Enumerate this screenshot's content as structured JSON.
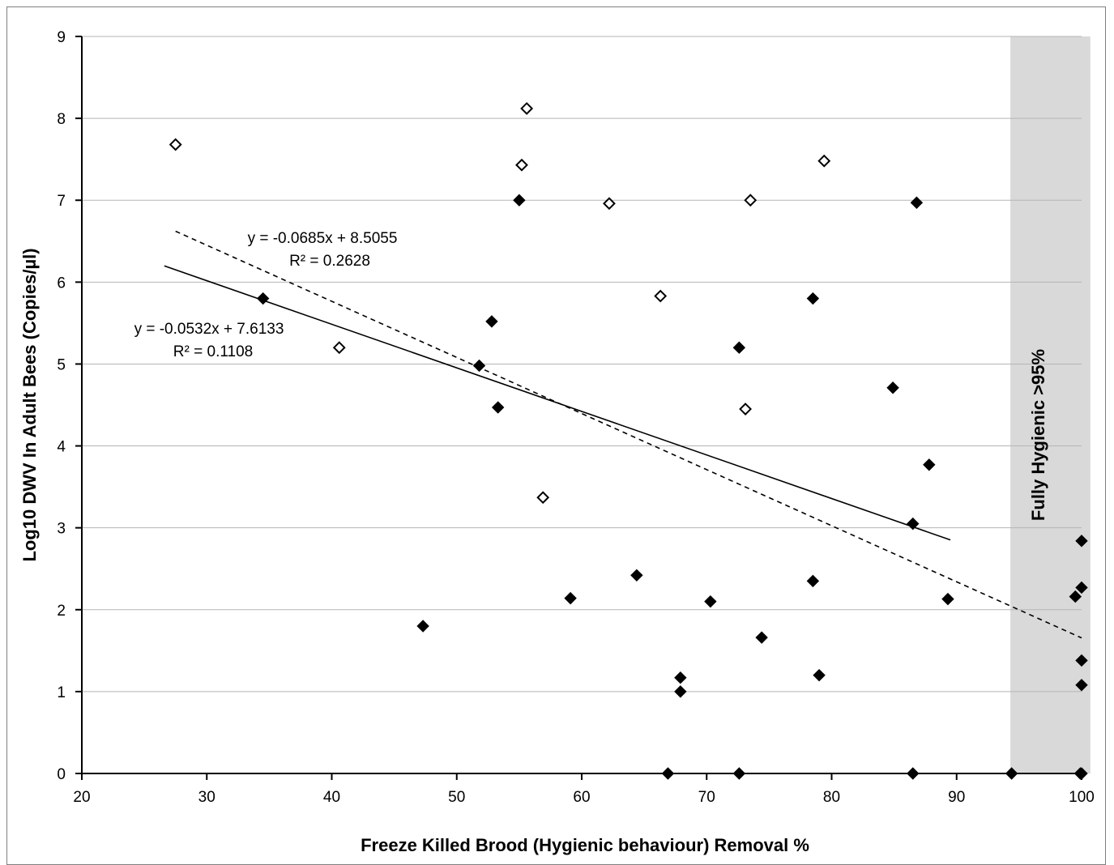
{
  "chart_data": {
    "type": "scatter",
    "xlabel": "Freeze Killed Brood (Hygienic behaviour) Removal %",
    "ylabel": "Log10 DWV In Adult Bees (Copies/µl)",
    "xlim": [
      20,
      100
    ],
    "ylim": [
      0,
      9
    ],
    "x_ticks": [
      "20",
      "30",
      "40",
      "50",
      "60",
      "70",
      "80",
      "90",
      "100"
    ],
    "y_ticks": [
      "0",
      "1",
      "2",
      "3",
      "4",
      "5",
      "6",
      "7",
      "8",
      "9"
    ],
    "grid": "horizontal",
    "shaded_region": {
      "x_range": [
        94.3,
        100.7
      ],
      "label": "Fully Hygienic >95%"
    },
    "series": [
      {
        "marker": "filled-diamond",
        "points": [
          [
            34.5,
            5.8
          ],
          [
            47.3,
            1.8
          ],
          [
            51.8,
            4.98
          ],
          [
            52.8,
            5.52
          ],
          [
            53.3,
            4.47
          ],
          [
            55.0,
            7.0
          ],
          [
            59.1,
            2.14
          ],
          [
            64.4,
            2.42
          ],
          [
            66.9,
            0.0
          ],
          [
            67.9,
            1.0
          ],
          [
            67.9,
            1.17
          ],
          [
            70.3,
            2.1
          ],
          [
            72.6,
            0.0
          ],
          [
            72.6,
            5.2
          ],
          [
            74.4,
            1.66
          ],
          [
            78.5,
            2.35
          ],
          [
            78.5,
            5.8
          ],
          [
            79.0,
            1.2
          ],
          [
            84.9,
            4.71
          ],
          [
            86.5,
            0.0
          ],
          [
            86.5,
            3.05
          ],
          [
            86.8,
            6.97
          ],
          [
            87.8,
            3.77
          ],
          [
            89.3,
            2.13
          ],
          [
            94.4,
            0.0
          ],
          [
            99.5,
            2.16
          ],
          [
            99.9,
            0.0
          ],
          [
            100.0,
            0.0
          ],
          [
            100.0,
            1.08
          ],
          [
            100.0,
            1.38
          ],
          [
            100.0,
            2.27
          ],
          [
            100.0,
            2.84
          ]
        ],
        "trendline": {
          "style": "solid",
          "slope": -0.0532,
          "intercept": 7.6133,
          "x_range": [
            26.6,
            89.5
          ]
        },
        "equation": "y = -0.0532x + 7.6133",
        "r2": "R² = 0.1108"
      },
      {
        "marker": "open-diamond",
        "points": [
          [
            27.5,
            7.68
          ],
          [
            40.6,
            5.2
          ],
          [
            55.2,
            7.43
          ],
          [
            55.6,
            8.12
          ],
          [
            56.9,
            3.37
          ],
          [
            62.2,
            6.96
          ],
          [
            66.3,
            5.83
          ],
          [
            73.1,
            4.45
          ],
          [
            73.5,
            7.0
          ],
          [
            79.4,
            7.48
          ]
        ],
        "trendline": {
          "style": "dashed",
          "slope": -0.0685,
          "intercept": 8.5055,
          "x_range": [
            27.5,
            100.0
          ]
        },
        "equation": "y = -0.0685x + 8.5055",
        "r2": "R² = 0.2628"
      }
    ]
  }
}
